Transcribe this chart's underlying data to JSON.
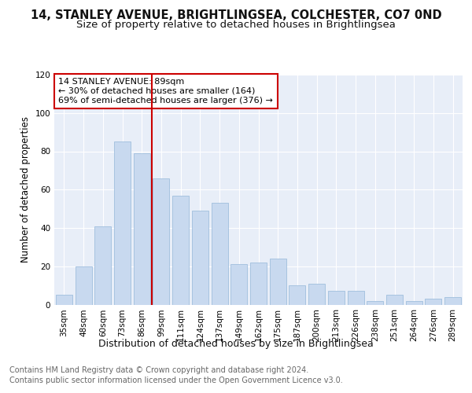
{
  "title1": "14, STANLEY AVENUE, BRIGHTLINGSEA, COLCHESTER, CO7 0ND",
  "title2": "Size of property relative to detached houses in Brightlingsea",
  "xlabel": "Distribution of detached houses by size in Brightlingsea",
  "ylabel": "Number of detached properties",
  "categories": [
    "35sqm",
    "48sqm",
    "60sqm",
    "73sqm",
    "86sqm",
    "99sqm",
    "111sqm",
    "124sqm",
    "137sqm",
    "149sqm",
    "162sqm",
    "175sqm",
    "187sqm",
    "200sqm",
    "213sqm",
    "226sqm",
    "238sqm",
    "251sqm",
    "264sqm",
    "276sqm",
    "289sqm"
  ],
  "values": [
    5,
    20,
    41,
    85,
    79,
    66,
    57,
    49,
    53,
    21,
    22,
    24,
    10,
    11,
    7,
    7,
    2,
    5,
    2,
    3,
    4
  ],
  "bar_color": "#c8d9ef",
  "bar_edge_color": "#a0bedd",
  "vline_x_index": 4,
  "vline_color": "#cc0000",
  "annotation_title": "14 STANLEY AVENUE: 89sqm",
  "annotation_line1": "← 30% of detached houses are smaller (164)",
  "annotation_line2": "69% of semi-detached houses are larger (376) →",
  "annotation_box_facecolor": "#ffffff",
  "annotation_box_edgecolor": "#cc0000",
  "ylim": [
    0,
    120
  ],
  "yticks": [
    0,
    20,
    40,
    60,
    80,
    100,
    120
  ],
  "background_color": "#e8eef8",
  "grid_color": "#ffffff",
  "fig_background": "#ffffff",
  "footer1": "Contains HM Land Registry data © Crown copyright and database right 2024.",
  "footer2": "Contains public sector information licensed under the Open Government Licence v3.0.",
  "title1_fontsize": 10.5,
  "title2_fontsize": 9.5,
  "xlabel_fontsize": 9,
  "ylabel_fontsize": 8.5,
  "tick_fontsize": 7.5,
  "annotation_fontsize": 8,
  "footer_fontsize": 7
}
